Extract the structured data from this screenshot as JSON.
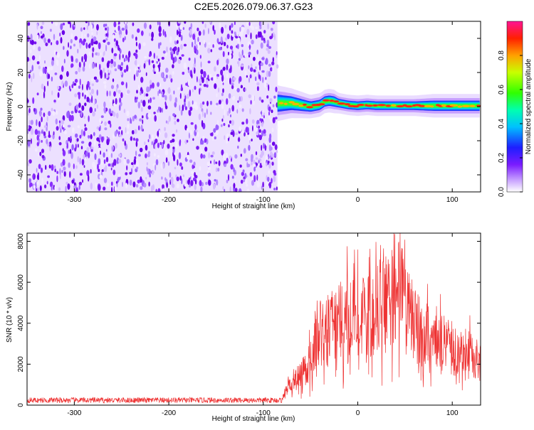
{
  "title": "C2E5.2026.079.06.37.G23",
  "chart_data": [
    {
      "type": "heatmap",
      "xlabel": "Height of straight line (km)",
      "ylabel": "Frequency (Hz)",
      "xlim": [
        -350,
        130
      ],
      "ylim": [
        -50,
        50
      ],
      "x_ticks": [
        "-300",
        "-200",
        "-100",
        "0",
        "100"
      ],
      "y_ticks": [
        "-40",
        "-20",
        "0",
        "20",
        "40"
      ],
      "colorbar": {
        "label": "Normalized spectral amplitude",
        "range": [
          0,
          1
        ],
        "ticks": [
          "0.0",
          "0.2",
          "0.4",
          "0.6",
          "0.8"
        ],
        "colormap": "rainbow (violet to red)"
      },
      "noise_region_x": [
        -350,
        -85
      ],
      "signal_band": {
        "x": [
          -85,
          -70,
          -60,
          -50,
          -40,
          -35,
          -30,
          -25,
          -20,
          -10,
          0,
          10,
          20,
          40,
          60,
          80,
          100,
          130
        ],
        "center_freq_hz": [
          2,
          2,
          1,
          0,
          1,
          3,
          3.5,
          3,
          2,
          1,
          0.5,
          1,
          0.5,
          0.5,
          0.5,
          0.5,
          0.5,
          0.5
        ],
        "half_width_hz": [
          5,
          4,
          3.5,
          3,
          3,
          3,
          3,
          3,
          2.5,
          2.5,
          2.5,
          2.5,
          2.5,
          2.5,
          2.5,
          3,
          3,
          3
        ]
      },
      "grid": false
    },
    {
      "type": "line",
      "xlabel": "Height of straight line (km)",
      "ylabel": "SNR (10 * v/v)",
      "xlim": [
        -350,
        130
      ],
      "ylim": [
        0,
        8400
      ],
      "x_ticks": [
        "-300",
        "-200",
        "-100",
        "0",
        "100"
      ],
      "y_ticks": [
        "0",
        "2000",
        "4000",
        "6000",
        "8000"
      ],
      "series": [
        {
          "color": "#ee3333",
          "envelope_x": [
            -350,
            -80,
            -75,
            -60,
            -50,
            -45,
            -40,
            -30,
            -20,
            -10,
            0,
            10,
            20,
            30,
            35,
            40,
            45,
            50,
            60,
            80,
            100,
            130
          ],
          "envelope_y": [
            300,
            300,
            900,
            1700,
            2400,
            3600,
            4000,
            4300,
            4600,
            5000,
            4900,
            4800,
            5200,
            5600,
            6200,
            6800,
            6300,
            5400,
            4500,
            3700,
            3200,
            2500
          ]
        }
      ],
      "grid": false
    }
  ]
}
